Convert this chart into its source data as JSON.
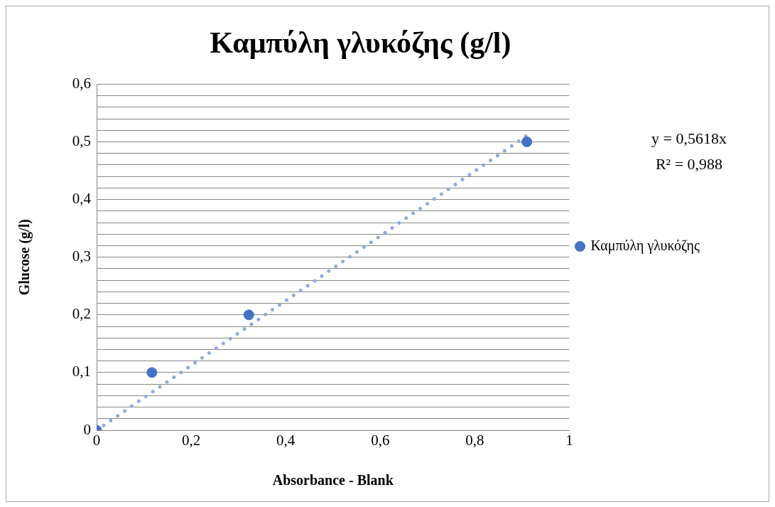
{
  "chart_data": {
    "type": "scatter",
    "title": "Καμπύλη γλυκόζης (g/l)",
    "xlabel": "Absorbance - Blank",
    "ylabel": "Glucose (g/l)",
    "x": [
      0,
      0.117,
      0.322,
      0.91
    ],
    "series": [
      {
        "name": "Καμπύλη γλυκόζης",
        "color": "#4472c4",
        "values": [
          0,
          0.1,
          0.2,
          0.5
        ]
      },
      {
        "type": "line",
        "x": [
          0,
          0.91
        ],
        "values": [
          0,
          0.511
        ],
        "color": "#8eaadb",
        "line_style": "dotted",
        "marker": "none"
      }
    ],
    "xlim": [
      0,
      1
    ],
    "ylim": [
      0,
      0.6
    ],
    "xticks": [
      0,
      {
        "value": 0.2,
        "label": "0,2"
      },
      {
        "value": 0.4,
        "label": "0,4"
      },
      {
        "value": 0.6,
        "label": "0,6"
      },
      {
        "value": 0.8,
        "label": "0,8"
      },
      1
    ],
    "yticks": [
      0,
      {
        "value": 0.02,
        "label": null
      },
      {
        "value": 0.04,
        "label": null
      },
      {
        "value": 0.06,
        "label": null
      },
      {
        "value": 0.08,
        "label": null
      },
      {
        "value": 0.1,
        "label": "0,1"
      },
      {
        "value": 0.12,
        "label": null
      },
      {
        "value": 0.14,
        "label": null
      },
      {
        "value": 0.16,
        "label": null
      },
      {
        "value": 0.18,
        "label": null
      },
      {
        "value": 0.2,
        "label": "0,2"
      },
      {
        "value": 0.22,
        "label": null
      },
      {
        "value": 0.24,
        "label": null
      },
      {
        "value": 0.26,
        "label": null
      },
      {
        "value": 0.28,
        "label": null
      },
      {
        "value": 0.3,
        "label": "0,3"
      },
      {
        "value": 0.32,
        "label": null
      },
      {
        "value": 0.34,
        "label": null
      },
      {
        "value": 0.36,
        "label": null
      },
      {
        "value": 0.38,
        "label": null
      },
      {
        "value": 0.4,
        "label": "0,4"
      },
      {
        "value": 0.42,
        "label": null
      },
      {
        "value": 0.44,
        "label": null
      },
      {
        "value": 0.46,
        "label": null
      },
      {
        "value": 0.48,
        "label": null
      },
      {
        "value": 0.5,
        "label": "0,5"
      },
      {
        "value": 0.52,
        "label": null
      },
      {
        "value": 0.54,
        "label": null
      },
      {
        "value": 0.56,
        "label": null
      },
      {
        "value": 0.58,
        "label": null
      },
      {
        "value": 0.6,
        "label": "0,6"
      }
    ],
    "grid": "y",
    "legend": "right",
    "marker": "circle",
    "annotations": [
      "y = 0,5618x",
      "R² = 0,988"
    ]
  }
}
